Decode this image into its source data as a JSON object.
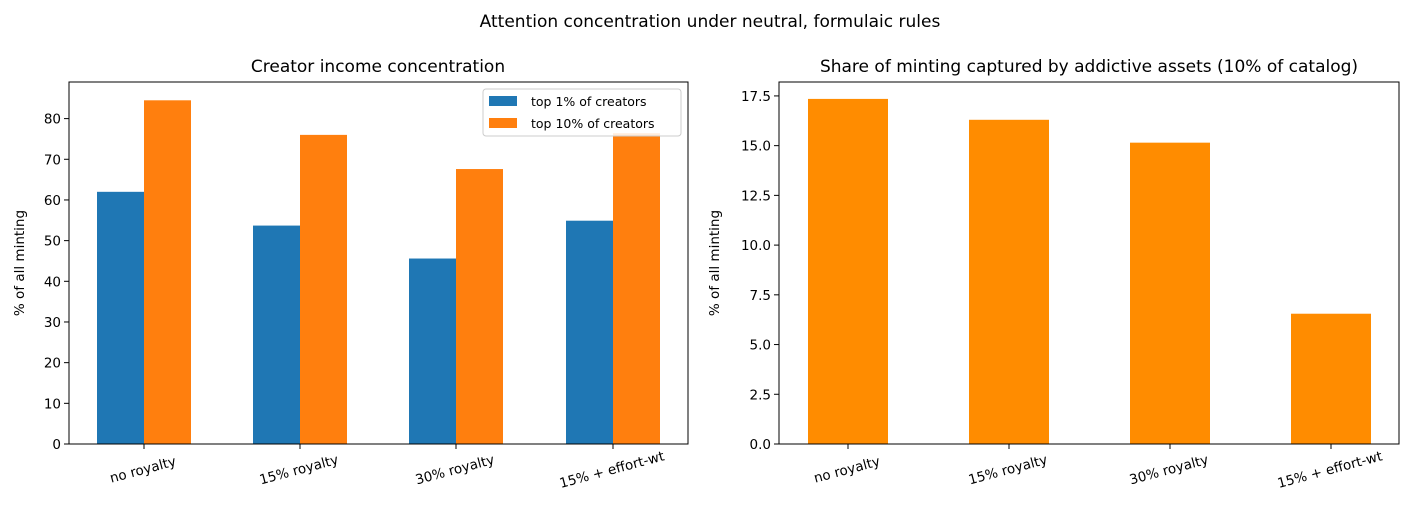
{
  "figure": {
    "title": "Attention concentration under neutral, formulaic rules"
  },
  "chart_data": [
    {
      "type": "bar",
      "title": "Creator income concentration",
      "xlabel": "",
      "ylabel": "% of all minting",
      "categories": [
        "no royalty",
        "15% royalty",
        "30% royalty",
        "15% + effort-wt"
      ],
      "series": [
        {
          "name": "top 1% of creators",
          "color": "#1f77b4",
          "values": [
            62.0,
            53.7,
            45.6,
            54.9
          ]
        },
        {
          "name": "top 10% of creators",
          "color": "#ff7f0e",
          "values": [
            84.5,
            76.0,
            67.6,
            76.4
          ]
        }
      ],
      "ylim": [
        0,
        89
      ],
      "yticks": [
        0,
        10,
        20,
        30,
        40,
        50,
        60,
        70,
        80
      ],
      "ytick_labels": [
        "0",
        "10",
        "20",
        "30",
        "40",
        "50",
        "60",
        "70",
        "80"
      ],
      "grid": false,
      "legend": "top-right"
    },
    {
      "type": "bar",
      "title": "Share of minting captured by addictive assets (10% of catalog)",
      "xlabel": "",
      "ylabel": "% of all minting",
      "categories": [
        "no royalty",
        "15% royalty",
        "30% royalty",
        "15% + effort-wt"
      ],
      "series": [
        {
          "color": "#ff8c00",
          "values": [
            17.35,
            16.3,
            15.15,
            6.55
          ]
        }
      ],
      "ylim": [
        0,
        18.2
      ],
      "yticks": [
        0,
        2.5,
        5,
        7.5,
        10,
        12.5,
        15,
        17.5
      ],
      "ytick_labels": [
        "0.0",
        "2.5",
        "5.0",
        "7.5",
        "10.0",
        "12.5",
        "15.0",
        "17.5"
      ],
      "grid": false,
      "legend": "none"
    }
  ]
}
